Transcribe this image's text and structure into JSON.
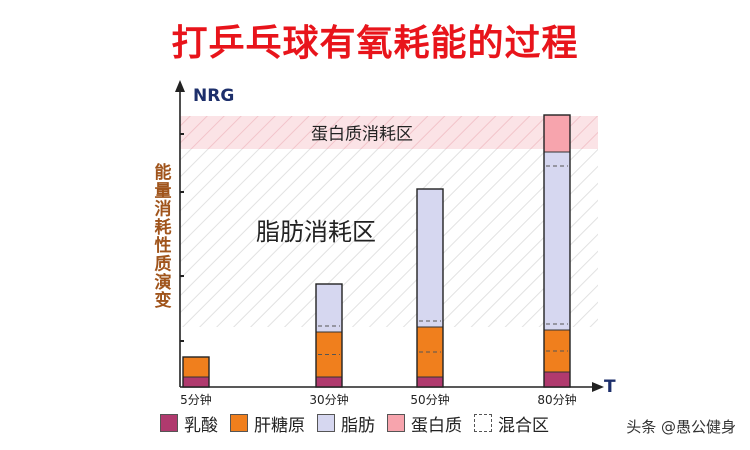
{
  "title": "打乒乓球有氧耗能的过程",
  "watermark": "头条 @愚公健身",
  "chart_data": {
    "type": "bar",
    "stacked": true,
    "title": "打乒乓球有氧耗能的过程",
    "xlabel": "T",
    "ylabel": "NRG",
    "side_label": "能量消耗性质演变",
    "categories": [
      "5分钟",
      "30分钟",
      "50分钟",
      "80分钟"
    ],
    "series": [
      {
        "name": "乳酸",
        "color": "#b03a6e",
        "values": [
          10,
          10,
          10,
          15
        ]
      },
      {
        "name": "肝糖原",
        "color": "#f07f1d",
        "values": [
          20,
          45,
          50,
          42
        ]
      },
      {
        "name": "脂肪",
        "color": "#d6d7f0",
        "values": [
          0,
          48,
          138,
          178
        ]
      },
      {
        "name": "蛋白质",
        "color": "#f7a4ad",
        "values": [
          0,
          0,
          0,
          37
        ]
      }
    ],
    "legend_extra": "混合区",
    "zones": [
      {
        "label": "蛋白质消耗区",
        "from": 238,
        "to": 271,
        "color": "#f7d6da"
      },
      {
        "label": "脂肪消耗区",
        "from": 60,
        "to": 238
      }
    ],
    "ylim": [
      0,
      272
    ],
    "legend_position": "bottom"
  }
}
